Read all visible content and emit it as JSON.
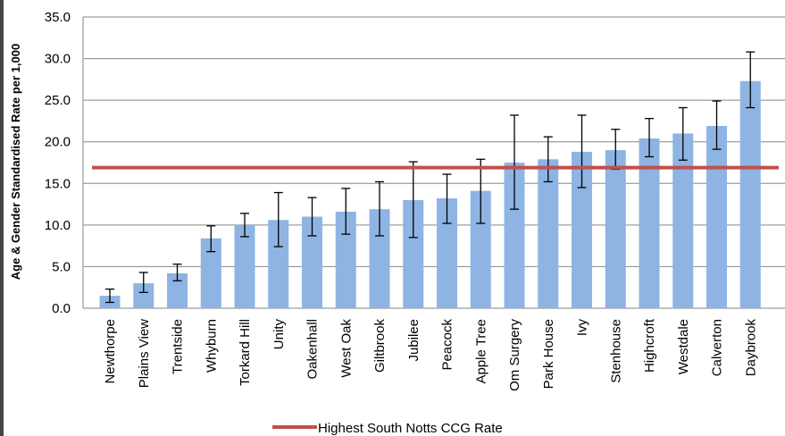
{
  "chart_data": {
    "type": "bar",
    "title": "",
    "xlabel": "",
    "ylabel": "Age & Gender Standardised  Rate per 1,000",
    "ylim": [
      0,
      35
    ],
    "yticks": [
      "0.0",
      "5.0",
      "10.0",
      "15.0",
      "20.0",
      "25.0",
      "30.0",
      "35.0"
    ],
    "grid": "horizontal",
    "bar_color": "#8eb4e3",
    "categories": [
      "Newthorpe",
      "Plains View",
      "Trentside",
      "Whyburn",
      "Torkard Hill",
      "Unity",
      "Oakenhall",
      "West Oak",
      "Giltbrook",
      "Jubilee",
      "Peacock",
      "Apple Tree",
      "Om Surgery",
      "Park House",
      "Ivy",
      "Stenhouse",
      "Highcroft",
      "Westdale",
      "Calverton",
      "Daybrook"
    ],
    "values": [
      1.5,
      3.0,
      4.2,
      8.4,
      10.0,
      10.6,
      11.0,
      11.6,
      11.9,
      13.0,
      13.2,
      14.1,
      17.5,
      17.9,
      18.8,
      19.0,
      20.4,
      21.0,
      21.9,
      27.3
    ],
    "error_low": [
      0.7,
      1.9,
      3.3,
      6.8,
      8.6,
      7.4,
      8.7,
      8.9,
      8.7,
      8.5,
      10.2,
      10.2,
      11.9,
      15.2,
      14.5,
      16.7,
      18.2,
      17.8,
      19.1,
      24.1
    ],
    "error_high": [
      2.3,
      4.3,
      5.3,
      9.9,
      11.4,
      13.9,
      13.3,
      14.4,
      15.2,
      17.6,
      16.1,
      17.9,
      23.2,
      20.6,
      23.2,
      21.5,
      22.8,
      24.1,
      24.9,
      30.8
    ],
    "reference_line": {
      "name": "Highest South Notts CCG Rate",
      "value": 16.9,
      "color": "#c0504d"
    },
    "legend": "bottom"
  }
}
